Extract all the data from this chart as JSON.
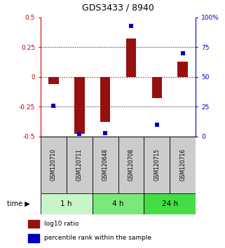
{
  "title": "GDS3433 / 8940",
  "samples": [
    "GSM120710",
    "GSM120711",
    "GSM120648",
    "GSM120708",
    "GSM120715",
    "GSM120716"
  ],
  "log10_ratio": [
    -0.06,
    -0.48,
    -0.38,
    0.32,
    -0.18,
    0.13
  ],
  "percentile_rank": [
    26,
    2,
    3,
    93,
    10,
    70
  ],
  "time_groups": [
    {
      "label": "1 h",
      "start": 0,
      "end": 2,
      "color": "#c8f5c8"
    },
    {
      "label": "4 h",
      "start": 2,
      "end": 4,
      "color": "#7ae87a"
    },
    {
      "label": "24 h",
      "start": 4,
      "end": 6,
      "color": "#44dd44"
    }
  ],
  "ylim_left": [
    -0.5,
    0.5
  ],
  "ylim_right": [
    0,
    100
  ],
  "yticks_left": [
    -0.5,
    -0.25,
    0,
    0.25,
    0.5
  ],
  "ytick_labels_left": [
    "-0.5",
    "-0.25",
    "0",
    "0.25",
    "0.5"
  ],
  "yticks_right": [
    0,
    25,
    50,
    75,
    100
  ],
  "ytick_labels_right": [
    "0",
    "25",
    "50",
    "75",
    "100%"
  ],
  "bar_color": "#971010",
  "dot_color": "#0000bb",
  "zero_line_color": "#cc0000",
  "bg_color": "#ffffff",
  "sample_box_color": "#cccccc",
  "left_axis_color": "#cc0000",
  "right_axis_color": "#0000cc",
  "figsize": [
    3.21,
    3.54
  ],
  "dpi": 100
}
